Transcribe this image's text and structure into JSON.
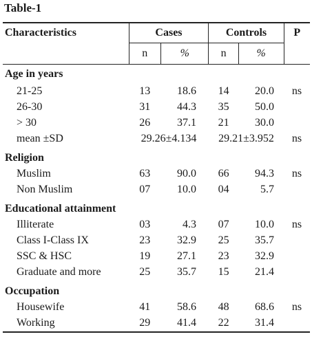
{
  "title": "Table-1",
  "header": {
    "characteristics": "Characteristics",
    "cases": "Cases",
    "controls": "Controls",
    "p": "P",
    "n": "n",
    "pct": "%"
  },
  "sections": [
    {
      "name": "Age in years",
      "rows": [
        {
          "label": "21-25",
          "cases_n": "13",
          "cases_pct": "18.6",
          "controls_n": "14",
          "controls_pct": "20.0",
          "p": "ns"
        },
        {
          "label": "26-30",
          "cases_n": "31",
          "cases_pct": "44.3",
          "controls_n": "35",
          "controls_pct": "50.0",
          "p": ""
        },
        {
          "label": "> 30",
          "cases_n": "26",
          "cases_pct": "37.1",
          "controls_n": "21",
          "controls_pct": "30.0",
          "p": ""
        },
        {
          "label": "mean ±SD",
          "cases_span": "29.26±4.134",
          "controls_span": "29.21±3.952",
          "p": "ns"
        }
      ]
    },
    {
      "name": "Religion",
      "rows": [
        {
          "label": "Muslim",
          "cases_n": "63",
          "cases_pct": "90.0",
          "controls_n": "66",
          "controls_pct": "94.3",
          "p": "ns"
        },
        {
          "label": "Non Muslim",
          "cases_n": "07",
          "cases_pct": "10.0",
          "controls_n": "04",
          "controls_pct": "5.7",
          "p": ""
        }
      ]
    },
    {
      "name": "Educational attainment",
      "rows": [
        {
          "label": "Illiterate",
          "cases_n": "03",
          "cases_pct": "4.3",
          "controls_n": "07",
          "controls_pct": "10.0",
          "p": "ns"
        },
        {
          "label": "Class I-Class IX",
          "cases_n": "23",
          "cases_pct": "32.9",
          "controls_n": "25",
          "controls_pct": "35.7",
          "p": ""
        },
        {
          "label": "SSC & HSC",
          "cases_n": "19",
          "cases_pct": "27.1",
          "controls_n": "23",
          "controls_pct": "32.9",
          "p": ""
        },
        {
          "label": "Graduate and more",
          "cases_n": "25",
          "cases_pct": "35.7",
          "controls_n": "15",
          "controls_pct": "21.4",
          "p": ""
        }
      ]
    },
    {
      "name": "Occupation",
      "rows": [
        {
          "label": "Housewife",
          "cases_n": "41",
          "cases_pct": "58.6",
          "controls_n": "48",
          "controls_pct": "68.6",
          "p": "ns"
        },
        {
          "label": "Working",
          "cases_n": "29",
          "cases_pct": "41.4",
          "controls_n": "22",
          "controls_pct": "31.4",
          "p": ""
        }
      ]
    }
  ]
}
